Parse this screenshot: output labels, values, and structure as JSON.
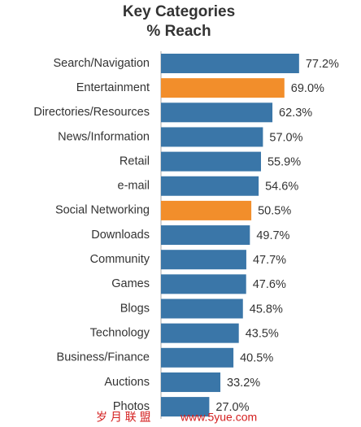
{
  "chart_data": {
    "type": "hbar",
    "title": "Key Categories",
    "subtitle": "% Reach",
    "categories": [
      "Search/Navigation",
      "Entertainment",
      "Directories/Resources",
      "News/Information",
      "Retail",
      "e-mail",
      "Social Networking",
      "Downloads",
      "Community",
      "Games",
      "Blogs",
      "Technology",
      "Business/Finance",
      "Auctions",
      "Photos"
    ],
    "values": [
      77.2,
      69.0,
      62.3,
      57.0,
      55.9,
      54.6,
      50.5,
      49.7,
      47.7,
      47.6,
      45.8,
      43.5,
      40.5,
      33.2,
      27.0
    ],
    "value_labels": [
      "77.2%",
      "69.0%",
      "62.3%",
      "57.0%",
      "55.9%",
      "54.6%",
      "50.5%",
      "49.7%",
      "47.7%",
      "47.6%",
      "45.8%",
      "43.5%",
      "40.5%",
      "33.2%",
      "27.0%"
    ],
    "colors": [
      "#3a76a8",
      "#f28e2b",
      "#3a76a8",
      "#3a76a8",
      "#3a76a8",
      "#3a76a8",
      "#f28e2b",
      "#3a76a8",
      "#3a76a8",
      "#3a76a8",
      "#3a76a8",
      "#3a76a8",
      "#3a76a8",
      "#3a76a8",
      "#3a76a8"
    ],
    "xlim": [
      0,
      100
    ]
  },
  "watermark": {
    "text": "岁 月 联 盟",
    "url": "www.5yue.com"
  }
}
